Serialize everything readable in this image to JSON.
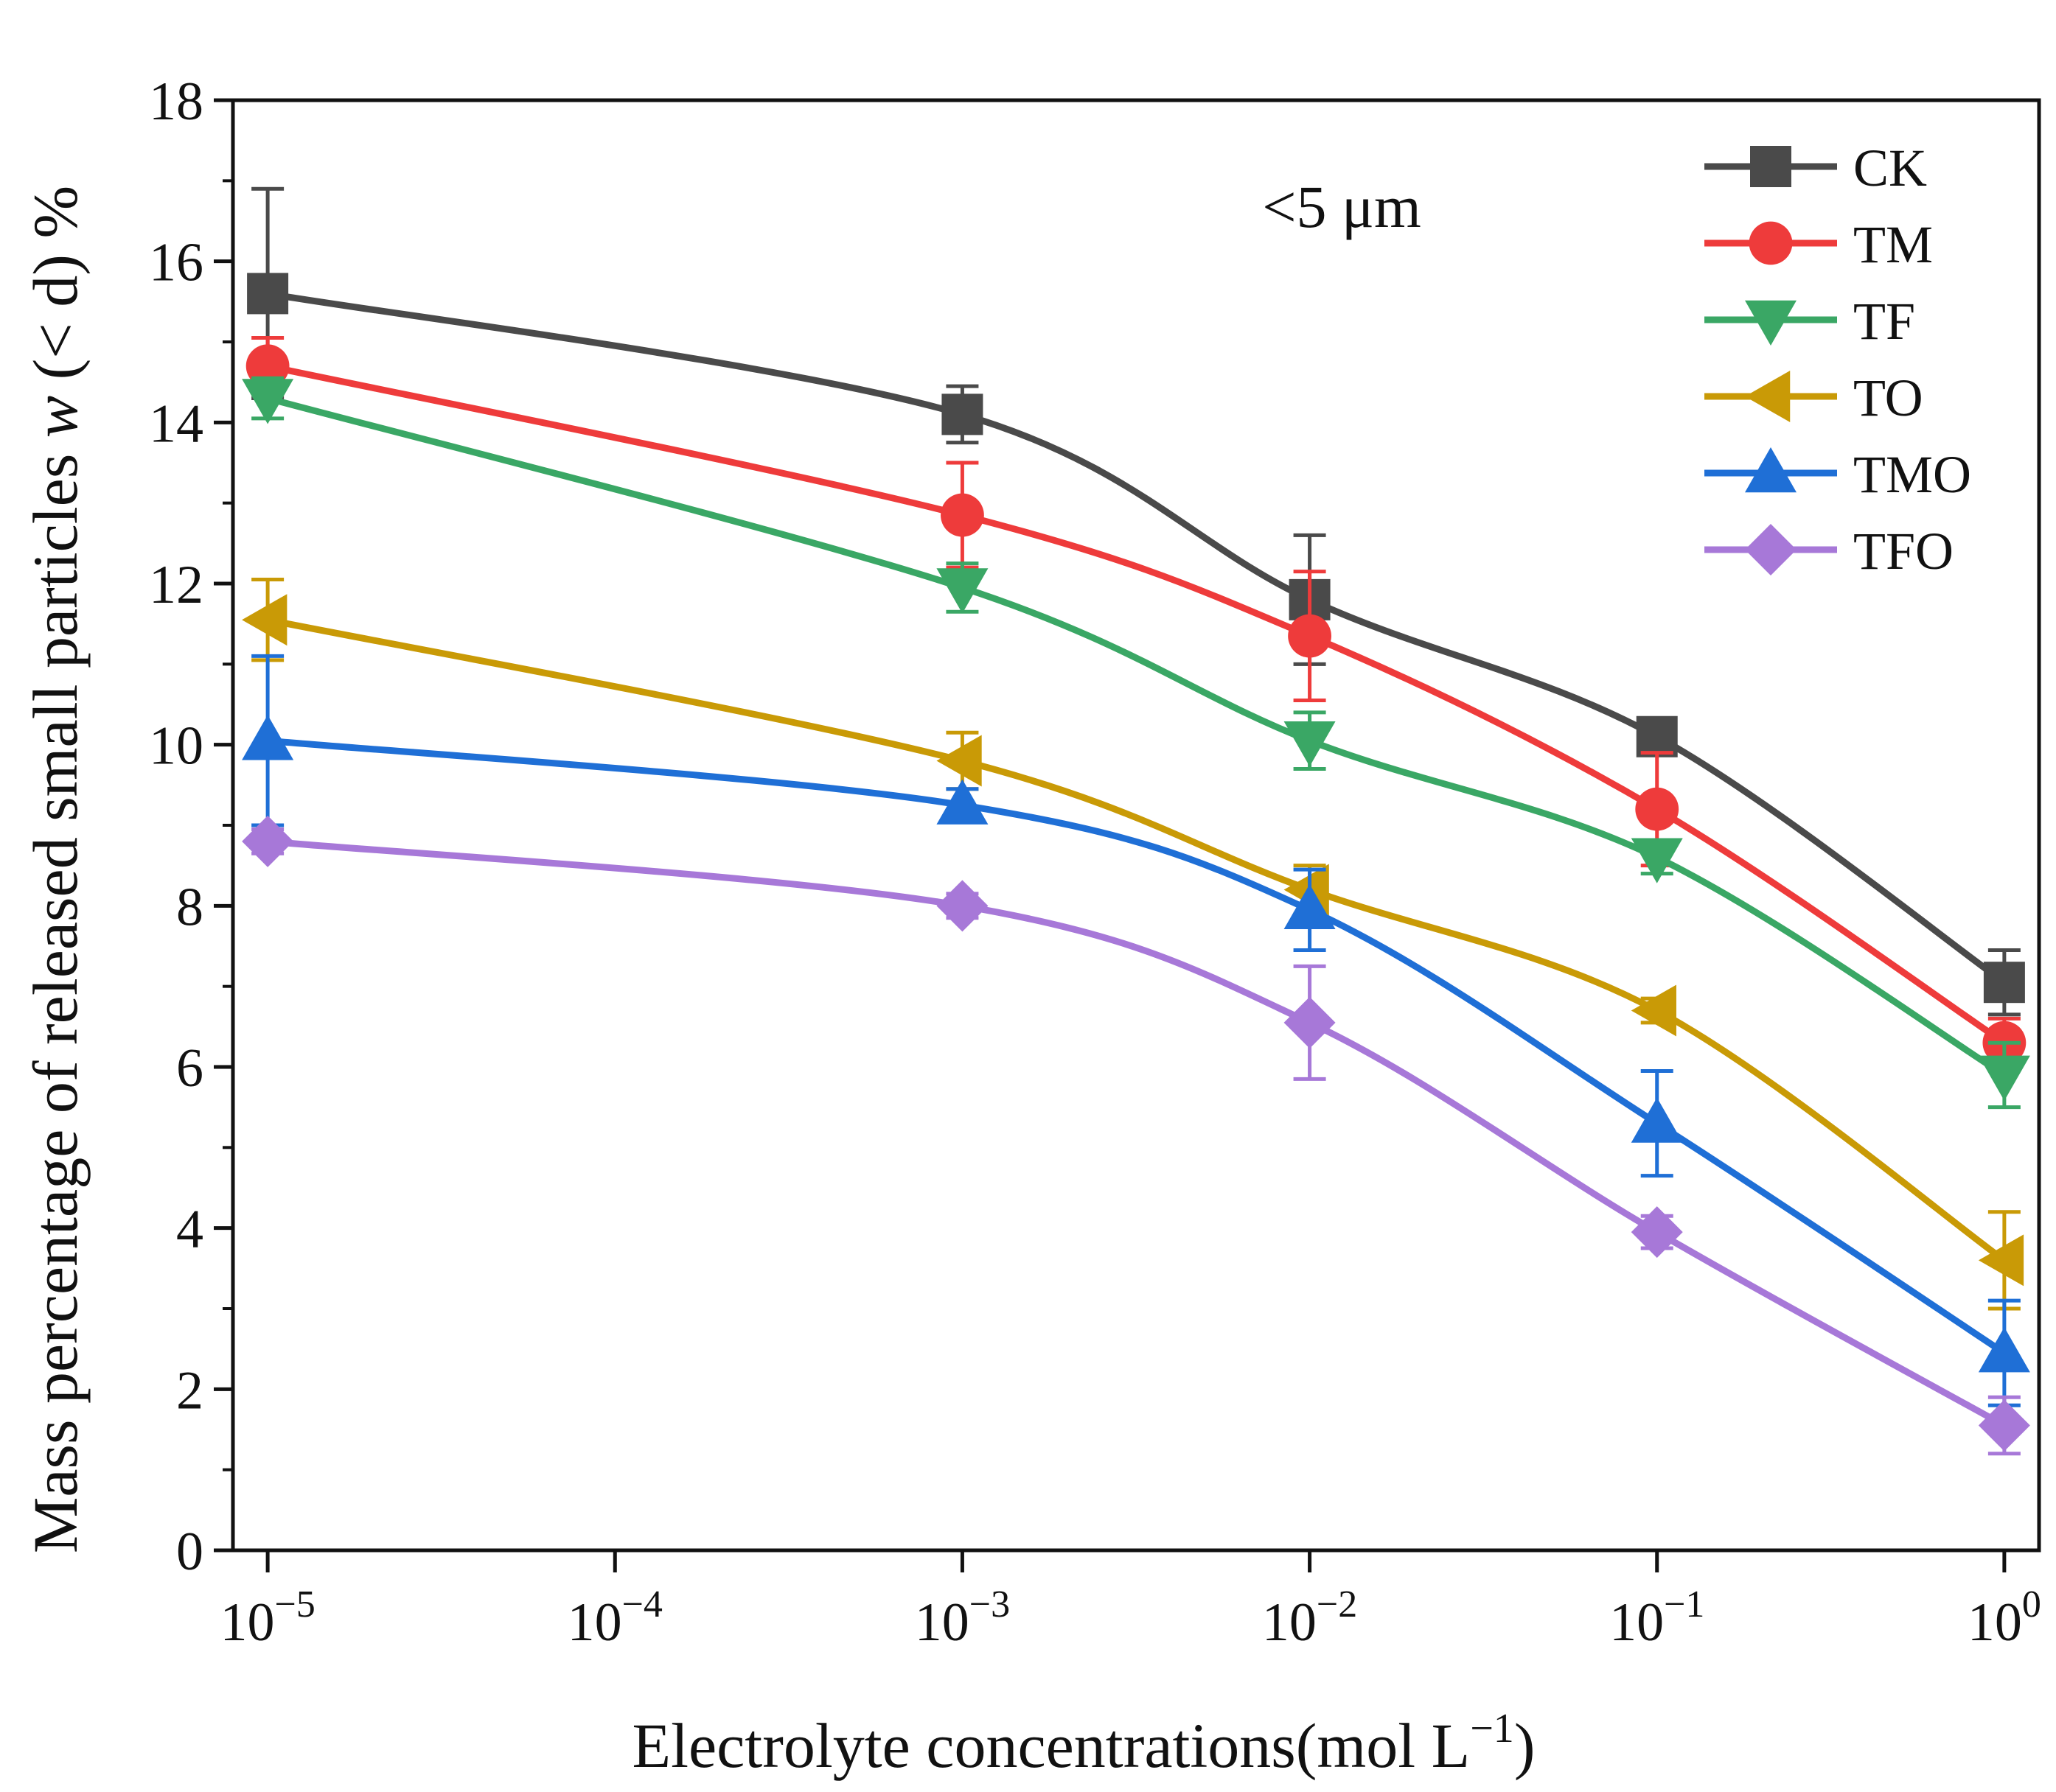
{
  "chart_data": {
    "type": "line",
    "title": "",
    "annotation": "<5 μm",
    "xlabel": {
      "main": "Electrolyte concentrations(mol L",
      "sup": "−1",
      "tail": ")"
    },
    "ylabel": {
      "pre": "Mass percentage of released small particles ",
      "italic": "w",
      "post": " (< d) %"
    },
    "x_scale": "log",
    "xlim_exp": [
      -5.1,
      0.1
    ],
    "ylim": [
      0,
      18
    ],
    "x_ticks": [
      {
        "exp": -5,
        "base": "10",
        "sup": "−5"
      },
      {
        "exp": -4,
        "base": "10",
        "sup": "−4"
      },
      {
        "exp": -3,
        "base": "10",
        "sup": "−3"
      },
      {
        "exp": -2,
        "base": "10",
        "sup": "−2"
      },
      {
        "exp": -1,
        "base": "10",
        "sup": "−1"
      },
      {
        "exp": 0,
        "base": "10",
        "sup": "0"
      }
    ],
    "y_ticks": [
      0,
      2,
      4,
      6,
      8,
      10,
      12,
      14,
      16,
      18
    ],
    "x": [
      1e-05,
      0.001,
      0.01,
      0.1,
      1
    ],
    "series": [
      {
        "name": "CK",
        "marker": "square",
        "color": "#4a4a4a",
        "values": [
          15.6,
          14.1,
          11.8,
          10.1,
          7.05
        ],
        "errors": [
          1.3,
          0.35,
          0.8,
          0.2,
          0.4
        ]
      },
      {
        "name": "TM",
        "marker": "circle",
        "color": "#ee3b3b",
        "values": [
          14.7,
          12.85,
          11.35,
          9.2,
          6.3
        ],
        "errors": [
          0.35,
          0.65,
          0.8,
          0.7,
          0.3
        ]
      },
      {
        "name": "TF",
        "marker": "triangle-down",
        "color": "#3aa765",
        "values": [
          14.3,
          11.95,
          10.05,
          8.6,
          5.9
        ],
        "errors": [
          0.25,
          0.3,
          0.35,
          0.2,
          0.4
        ]
      },
      {
        "name": "TO",
        "marker": "triangle-left",
        "color": "#c99a06",
        "values": [
          11.55,
          9.8,
          8.2,
          6.7,
          3.6
        ],
        "errors": [
          0.5,
          0.35,
          0.3,
          0.15,
          0.6
        ]
      },
      {
        "name": "TMO",
        "marker": "triangle-up",
        "color": "#1f6fd6",
        "values": [
          10.05,
          9.25,
          7.95,
          5.3,
          2.45
        ],
        "errors": [
          1.05,
          0.2,
          0.5,
          0.65,
          0.65
        ]
      },
      {
        "name": "TFO",
        "marker": "diamond",
        "color": "#a778d8",
        "values": [
          8.8,
          8.0,
          6.55,
          3.95,
          1.55
        ],
        "errors": [
          0.15,
          0.15,
          0.7,
          0.2,
          0.35
        ]
      }
    ],
    "legend_position": "top-right"
  }
}
